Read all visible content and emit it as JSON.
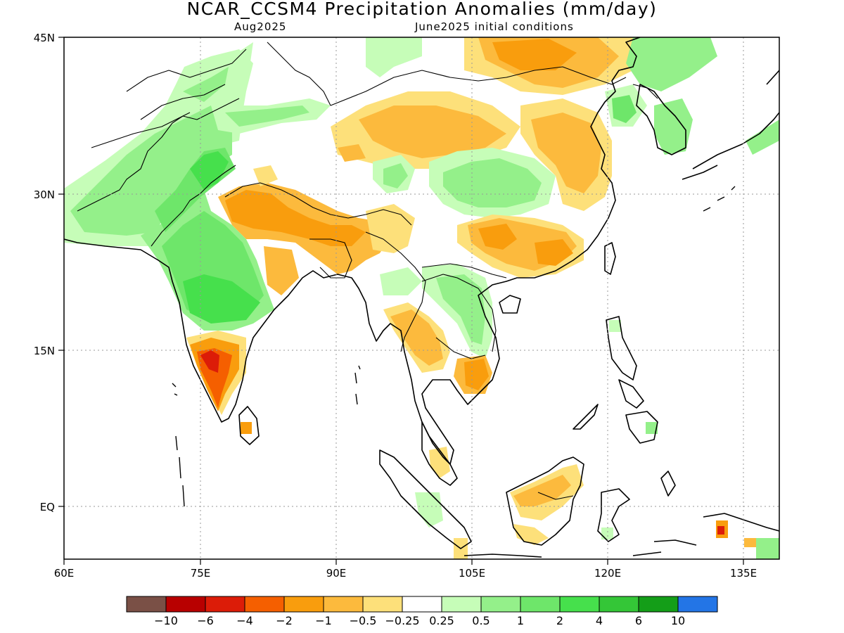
{
  "header": {
    "title": "NCAR_CCSM4 Precipitation Anomalies (mm/day)",
    "subtitle_left": "Aug2025",
    "subtitle_right": "June2025 initial conditions"
  },
  "map": {
    "lon_range": [
      60,
      140
    ],
    "lat_range": [
      -6,
      45
    ],
    "lon_ticks": [
      "60E",
      "75E",
      "90E",
      "105E",
      "120E",
      "135E"
    ],
    "lat_ticks": [
      "45N",
      "30N",
      "15N",
      "EQ"
    ],
    "grid": true
  },
  "colorbar": {
    "colors": [
      "#7a5046",
      "#b80000",
      "#dc1c08",
      "#f55f00",
      "#f99d0d",
      "#fcba3d",
      "#fde07a",
      "#ffffff",
      "#c6fdb8",
      "#94f08a",
      "#6ee66a",
      "#46e04c",
      "#34c637",
      "#149e18",
      "#2375e6"
    ],
    "labels": [
      "-10",
      "-6",
      "-4",
      "-2",
      "-1",
      "-0.5",
      "-0.25",
      "0.25",
      "0.5",
      "1",
      "2",
      "4",
      "6",
      "10"
    ]
  },
  "anomaly_regions": [
    {
      "name": "north-india-pakistan-wet",
      "value": 2
    },
    {
      "name": "central-india-wet",
      "value": 2
    },
    {
      "name": "pakistan-afghanistan-wet",
      "value": 1
    },
    {
      "name": "himalaya-dry",
      "value": -1
    },
    {
      "name": "south-india-dry",
      "value": -2
    },
    {
      "name": "tibet-dry",
      "value": -1
    },
    {
      "name": "sichuan-wet",
      "value": 1
    },
    {
      "name": "south-china-dry",
      "value": -1
    },
    {
      "name": "north-china-dry",
      "value": -1
    },
    {
      "name": "myanmar-thailand-dry",
      "value": -1
    },
    {
      "name": "cambodia-dry",
      "value": -2
    },
    {
      "name": "laos-wet",
      "value": 1
    },
    {
      "name": "borneo-dry",
      "value": -1
    },
    {
      "name": "mongolia-wet",
      "value": 0.5
    },
    {
      "name": "korea-wet",
      "value": 1
    }
  ]
}
